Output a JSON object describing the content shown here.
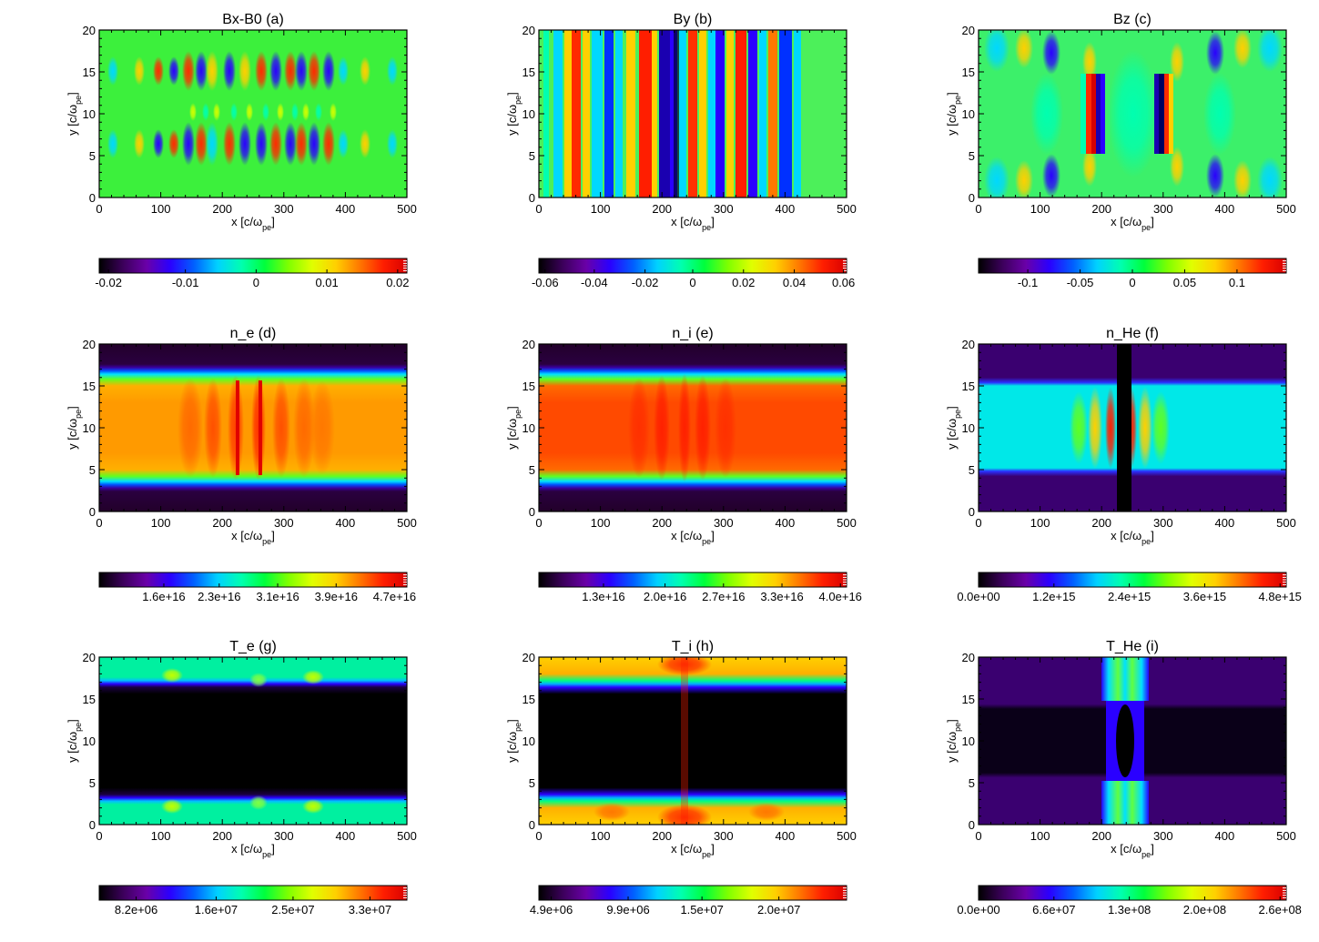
{
  "colors": {
    "colormap_rainbow": [
      "#000000",
      "#3b005a",
      "#6a00a8",
      "#2a00ff",
      "#0060ff",
      "#00d2ff",
      "#00ffb0",
      "#00ff3c",
      "#7fff00",
      "#e0ff00",
      "#ffd000",
      "#ff7800",
      "#ff1e00",
      "#d80000"
    ]
  },
  "chart_data": [
    {
      "id": "a",
      "type": "heatmap",
      "title": "Bx-B0 (a)",
      "xlabel_main": "x [c/ω",
      "xlabel_sub": "pe",
      "xlabel_end": "]",
      "ylabel_main": "y [c/ω",
      "ylabel_sub": "pe",
      "ylabel_end": "]",
      "x_ticks": [
        "0",
        "100",
        "200",
        "300",
        "400",
        "500"
      ],
      "y_ticks": [
        "0",
        "5",
        "10",
        "15",
        "20"
      ],
      "xlim": [
        0,
        500
      ],
      "ylim": [
        0,
        20
      ],
      "pattern": "bx",
      "colorbar": {
        "ticks": [
          "-0.02",
          "-0.01",
          "0",
          "0.01",
          "0.02"
        ],
        "positions": [
          0.03,
          0.28,
          0.51,
          0.74,
          0.97
        ]
      }
    },
    {
      "id": "b",
      "type": "heatmap",
      "title": "By (b)",
      "xlabel_main": "x [c/ω",
      "xlabel_sub": "pe",
      "xlabel_end": "]",
      "ylabel_main": "y [c/ω",
      "ylabel_sub": "pe",
      "ylabel_end": "]",
      "x_ticks": [
        "0",
        "100",
        "200",
        "300",
        "400",
        "500"
      ],
      "y_ticks": [
        "0",
        "5",
        "10",
        "15",
        "20"
      ],
      "xlim": [
        0,
        500
      ],
      "ylim": [
        0,
        20
      ],
      "pattern": "by",
      "colorbar": {
        "ticks": [
          "-0.06",
          "-0.04",
          "-0.02",
          "0",
          "0.02",
          "0.04",
          "0.06"
        ],
        "positions": [
          0.02,
          0.18,
          0.345,
          0.5,
          0.665,
          0.83,
          0.99
        ]
      }
    },
    {
      "id": "c",
      "type": "heatmap",
      "title": "Bz (c)",
      "xlabel_main": "x [c/ω",
      "xlabel_sub": "pe",
      "xlabel_end": "]",
      "ylabel_main": "y [c/ω",
      "ylabel_sub": "pe",
      "ylabel_end": "]",
      "x_ticks": [
        "0",
        "100",
        "200",
        "300",
        "400",
        "500"
      ],
      "y_ticks": [
        "0",
        "5",
        "10",
        "15",
        "20"
      ],
      "xlim": [
        0,
        500
      ],
      "ylim": [
        0,
        20
      ],
      "pattern": "bz",
      "colorbar": {
        "ticks": [
          "-0.1",
          "-0.05",
          "0",
          "0.05",
          "0.1"
        ],
        "positions": [
          0.16,
          0.33,
          0.5,
          0.67,
          0.84
        ]
      }
    },
    {
      "id": "d",
      "type": "heatmap",
      "title": "n_e (d)",
      "xlabel_main": "x [c/ω",
      "xlabel_sub": "pe",
      "xlabel_end": "]",
      "ylabel_main": "y [c/ω",
      "ylabel_sub": "pe",
      "ylabel_end": "]",
      "x_ticks": [
        "0",
        "100",
        "200",
        "300",
        "400",
        "500"
      ],
      "y_ticks": [
        "0",
        "5",
        "10",
        "15",
        "20"
      ],
      "xlim": [
        0,
        500
      ],
      "ylim": [
        0,
        20
      ],
      "pattern": "ne",
      "colorbar": {
        "ticks": [
          "1.6e+16",
          "2.3e+16",
          "3.1e+16",
          "3.9e+16",
          "4.7e+16"
        ],
        "positions": [
          0.21,
          0.39,
          0.58,
          0.77,
          0.96
        ]
      }
    },
    {
      "id": "e",
      "type": "heatmap",
      "title": "n_i (e)",
      "xlabel_main": "x [c/ω",
      "xlabel_sub": "pe",
      "xlabel_end": "]",
      "ylabel_main": "y [c/ω",
      "ylabel_sub": "pe",
      "ylabel_end": "]",
      "x_ticks": [
        "0",
        "100",
        "200",
        "300",
        "400",
        "500"
      ],
      "y_ticks": [
        "0",
        "5",
        "10",
        "15",
        "20"
      ],
      "xlim": [
        0,
        500
      ],
      "ylim": [
        0,
        20
      ],
      "pattern": "ni",
      "colorbar": {
        "ticks": [
          "1.3e+16",
          "2.0e+16",
          "2.7e+16",
          "3.3e+16",
          "4.0e+16"
        ],
        "positions": [
          0.21,
          0.41,
          0.6,
          0.79,
          0.98
        ]
      }
    },
    {
      "id": "f",
      "type": "heatmap",
      "title": "n_He (f)",
      "xlabel_main": "x [c/ω",
      "xlabel_sub": "pe",
      "xlabel_end": "]",
      "ylabel_main": "y [c/ω",
      "ylabel_sub": "pe",
      "ylabel_end": "]",
      "x_ticks": [
        "0",
        "100",
        "200",
        "300",
        "400",
        "500"
      ],
      "y_ticks": [
        "0",
        "5",
        "10",
        "15",
        "20"
      ],
      "xlim": [
        0,
        500
      ],
      "ylim": [
        0,
        20
      ],
      "pattern": "nhe",
      "colorbar": {
        "ticks": [
          "0.0e+00",
          "1.2e+15",
          "2.4e+15",
          "3.6e+15",
          "4.8e+15"
        ],
        "positions": [
          0.0,
          0.245,
          0.49,
          0.735,
          0.98
        ]
      }
    },
    {
      "id": "g",
      "type": "heatmap",
      "title": "T_e (g)",
      "xlabel_main": "x [c/ω",
      "xlabel_sub": "pe",
      "xlabel_end": "]",
      "ylabel_main": "y [c/ω",
      "ylabel_sub": "pe",
      "ylabel_end": "]",
      "x_ticks": [
        "0",
        "100",
        "200",
        "300",
        "400",
        "500"
      ],
      "y_ticks": [
        "0",
        "5",
        "10",
        "15",
        "20"
      ],
      "xlim": [
        0,
        500
      ],
      "ylim": [
        0,
        20
      ],
      "pattern": "te",
      "colorbar": {
        "ticks": [
          "8.2e+06",
          "1.6e+07",
          "2.5e+07",
          "3.3e+07"
        ],
        "positions": [
          0.12,
          0.38,
          0.63,
          0.88
        ]
      }
    },
    {
      "id": "h",
      "type": "heatmap",
      "title": "T_i (h)",
      "xlabel_main": "x [c/ω",
      "xlabel_sub": "pe",
      "xlabel_end": "]",
      "ylabel_main": "y [c/ω",
      "ylabel_sub": "pe",
      "ylabel_end": "]",
      "x_ticks": [
        "0",
        "100",
        "200",
        "300",
        "400",
        "500"
      ],
      "y_ticks": [
        "0",
        "5",
        "10",
        "15",
        "20"
      ],
      "xlim": [
        0,
        500
      ],
      "ylim": [
        0,
        20
      ],
      "pattern": "ti",
      "colorbar": {
        "ticks": [
          "4.9e+06",
          "9.9e+06",
          "1.5e+07",
          "2.0e+07"
        ],
        "positions": [
          0.04,
          0.29,
          0.53,
          0.78
        ]
      }
    },
    {
      "id": "i",
      "type": "heatmap",
      "title": "T_He (i)",
      "xlabel_main": "x [c/ω",
      "xlabel_sub": "pe",
      "xlabel_end": "]",
      "ylabel_main": "y [c/ω",
      "ylabel_sub": "pe",
      "ylabel_end": "]",
      "x_ticks": [
        "0",
        "100",
        "200",
        "300",
        "400",
        "500"
      ],
      "y_ticks": [
        "0",
        "5",
        "10",
        "15",
        "20"
      ],
      "xlim": [
        0,
        500
      ],
      "ylim": [
        0,
        20
      ],
      "pattern": "the",
      "colorbar": {
        "ticks": [
          "0.0e+00",
          "6.6e+07",
          "1.3e+08",
          "2.0e+08",
          "2.6e+08"
        ],
        "positions": [
          0.0,
          0.245,
          0.49,
          0.735,
          0.98
        ]
      }
    }
  ]
}
